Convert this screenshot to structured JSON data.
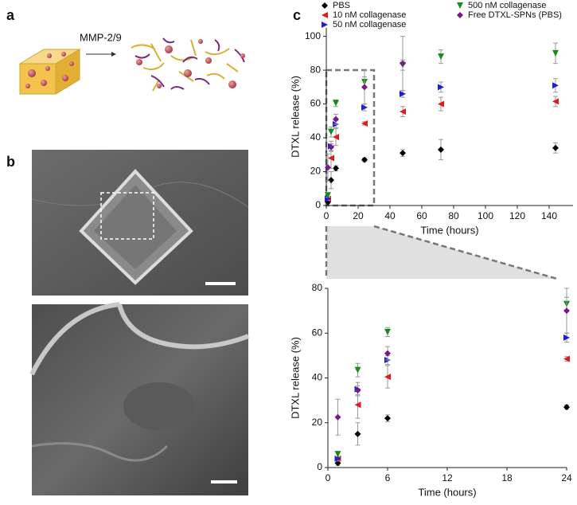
{
  "panel_labels": [
    "a",
    "b",
    "c"
  ],
  "scheme": {
    "arrow_label": "MMP-2/9"
  },
  "chart_data": [
    {
      "type": "scatter",
      "x_label": "Time (hours)",
      "y_label": "DTXL release (%)",
      "x": [
        1,
        3,
        6,
        24,
        48,
        72,
        144
      ],
      "xlim": [
        0,
        155
      ],
      "xticks": [
        0,
        20,
        40,
        60,
        80,
        100,
        120,
        140
      ],
      "ylim": [
        0,
        105
      ],
      "yticks": [
        0,
        20,
        40,
        60,
        80,
        100
      ],
      "series": [
        {
          "name": "PBS",
          "color": "#000000",
          "marker": "diamond",
          "values": [
            2,
            15,
            22,
            27,
            31,
            33,
            34
          ],
          "errors": [
            1,
            5,
            1.5,
            1,
            2,
            6,
            3
          ]
        },
        {
          "name": "10 nM collagenase",
          "color": "#e31a1c",
          "marker": "triangle-left",
          "values": [
            4,
            28,
            40.5,
            48.5,
            55.5,
            60,
            61.5
          ],
          "errors": [
            1,
            6,
            5,
            1,
            3,
            4,
            3
          ]
        },
        {
          "name": "50 nM collagenase",
          "color": "#1f1fd0",
          "marker": "triangle-right",
          "values": [
            4,
            35,
            48,
            58,
            66,
            70,
            71
          ],
          "errors": [
            1,
            3,
            2,
            2,
            2,
            3,
            4
          ]
        },
        {
          "name": "500 nM collagenase",
          "color": "#1a8a1a",
          "marker": "triangle-down",
          "values": [
            6,
            43.5,
            60.5,
            73,
            83,
            88,
            90
          ],
          "errors": [
            1,
            3,
            2,
            3,
            3,
            4,
            6
          ]
        },
        {
          "name": "Free DTXL-SPNs (PBS)",
          "color": "#7a1a8a",
          "marker": "diamond",
          "values": [
            22.5,
            34.5,
            51,
            70,
            84,
            null,
            null
          ],
          "errors": [
            8,
            2,
            3,
            10,
            16,
            null,
            null
          ]
        }
      ]
    },
    {
      "type": "scatter",
      "x_label": "Time (hours)",
      "y_label": "DTXL release (%)",
      "x": [
        1,
        3,
        6,
        24
      ],
      "xlim": [
        0,
        24
      ],
      "xticks": [
        0,
        6,
        12,
        18,
        24
      ],
      "ylim": [
        0,
        80
      ],
      "yticks": [
        0,
        20,
        40,
        60,
        80
      ],
      "series": [
        {
          "name": "PBS",
          "color": "#000000",
          "marker": "diamond",
          "values": [
            2,
            15,
            22,
            27
          ],
          "errors": [
            1,
            5,
            1.5,
            1
          ]
        },
        {
          "name": "10 nM collagenase",
          "color": "#e31a1c",
          "marker": "triangle-left",
          "values": [
            4,
            28,
            40.5,
            48.5
          ],
          "errors": [
            1,
            6,
            5,
            1
          ]
        },
        {
          "name": "50 nM collagenase",
          "color": "#1f1fd0",
          "marker": "triangle-right",
          "values": [
            4,
            35,
            48,
            58
          ],
          "errors": [
            1,
            3,
            2,
            2
          ]
        },
        {
          "name": "500 nM collagenase",
          "color": "#1a8a1a",
          "marker": "triangle-down",
          "values": [
            6,
            43.5,
            60.5,
            73
          ],
          "errors": [
            1,
            3,
            2,
            3
          ]
        },
        {
          "name": "Free DTXL-SPNs (PBS)",
          "color": "#7a1a8a",
          "marker": "diamond",
          "values": [
            22.5,
            34.5,
            51,
            70
          ],
          "errors": [
            8,
            2,
            3,
            10
          ]
        }
      ]
    }
  ]
}
